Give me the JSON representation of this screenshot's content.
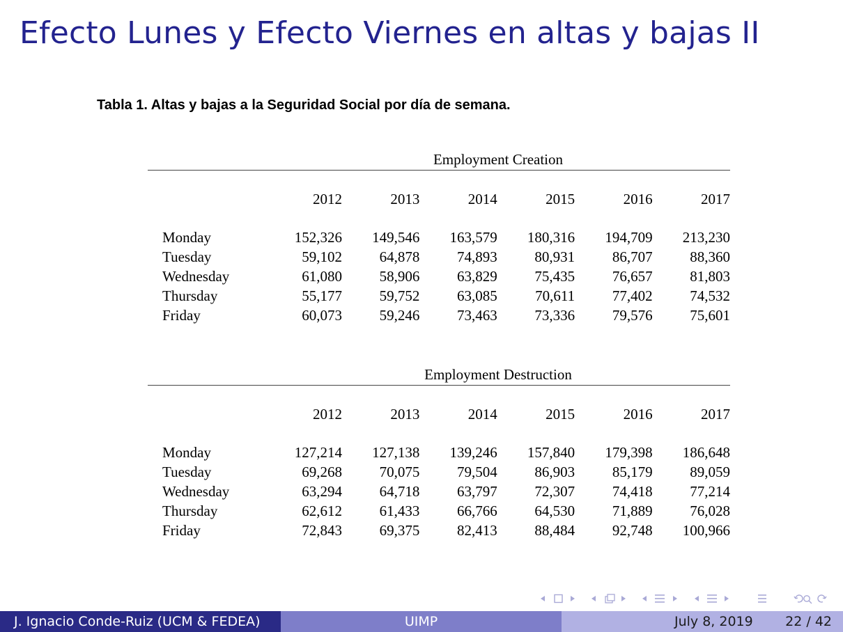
{
  "slide": {
    "title": "Efecto Lunes y Efecto Viernes en altas y bajas II",
    "caption": "Tabla 1. Altas y bajas a la Seguridad Social por día de semana."
  },
  "tables": [
    {
      "heading": "Employment Creation",
      "years": [
        "2012",
        "2013",
        "2014",
        "2015",
        "2016",
        "2017"
      ],
      "rows": [
        {
          "day": "Monday",
          "values": [
            "152,326",
            "149,546",
            "163,579",
            "180,316",
            "194,709",
            "213,230"
          ]
        },
        {
          "day": "Tuesday",
          "values": [
            "59,102",
            "64,878",
            "74,893",
            "80,931",
            "86,707",
            "88,360"
          ]
        },
        {
          "day": "Wednesday",
          "values": [
            "61,080",
            "58,906",
            "63,829",
            "75,435",
            "76,657",
            "81,803"
          ]
        },
        {
          "day": "Thursday",
          "values": [
            "55,177",
            "59,752",
            "63,085",
            "70,611",
            "77,402",
            "74,532"
          ]
        },
        {
          "day": "Friday",
          "values": [
            "60,073",
            "59,246",
            "73,463",
            "73,336",
            "79,576",
            "75,601"
          ]
        }
      ]
    },
    {
      "heading": "Employment Destruction",
      "years": [
        "2012",
        "2013",
        "2014",
        "2015",
        "2016",
        "2017"
      ],
      "rows": [
        {
          "day": "Monday",
          "values": [
            "127,214",
            "127,138",
            "139,246",
            "157,840",
            "179,398",
            "186,648"
          ]
        },
        {
          "day": "Tuesday",
          "values": [
            "69,268",
            "70,075",
            "79,504",
            "86,903",
            "85,179",
            "89,059"
          ]
        },
        {
          "day": "Wednesday",
          "values": [
            "63,294",
            "64,718",
            "63,797",
            "72,307",
            "74,418",
            "77,214"
          ]
        },
        {
          "day": "Thursday",
          "values": [
            "62,612",
            "61,433",
            "66,766",
            "64,530",
            "71,889",
            "76,028"
          ]
        },
        {
          "day": "Friday",
          "values": [
            "72,843",
            "69,375",
            "82,413",
            "88,484",
            "92,748",
            "100,966"
          ]
        }
      ]
    }
  ],
  "navigation": {
    "icons": [
      "nav-arrow-left-icon",
      "nav-frame-icon",
      "nav-arrow-right-icon",
      "nav-arrow-left-icon",
      "nav-subsection-icon",
      "nav-arrow-right-icon",
      "nav-arrow-left-icon",
      "nav-section-icon",
      "nav-arrow-right-icon",
      "nav-arrow-left-icon",
      "nav-toc-icon",
      "nav-arrow-right-icon",
      "nav-appendix-icon",
      "nav-search-icon"
    ],
    "colors": {
      "nav": "#a9a9d6"
    }
  },
  "footer": {
    "author": "J. Ignacio Conde-Ruiz (UCM & FEDEA)",
    "institution": "UIMP",
    "date": "July 8, 2019",
    "page": "22 / 42",
    "colors": {
      "left": "#2a2a86",
      "middle": "#7e7ec9",
      "right": "#b1b1e3",
      "title": "#23238f"
    }
  }
}
